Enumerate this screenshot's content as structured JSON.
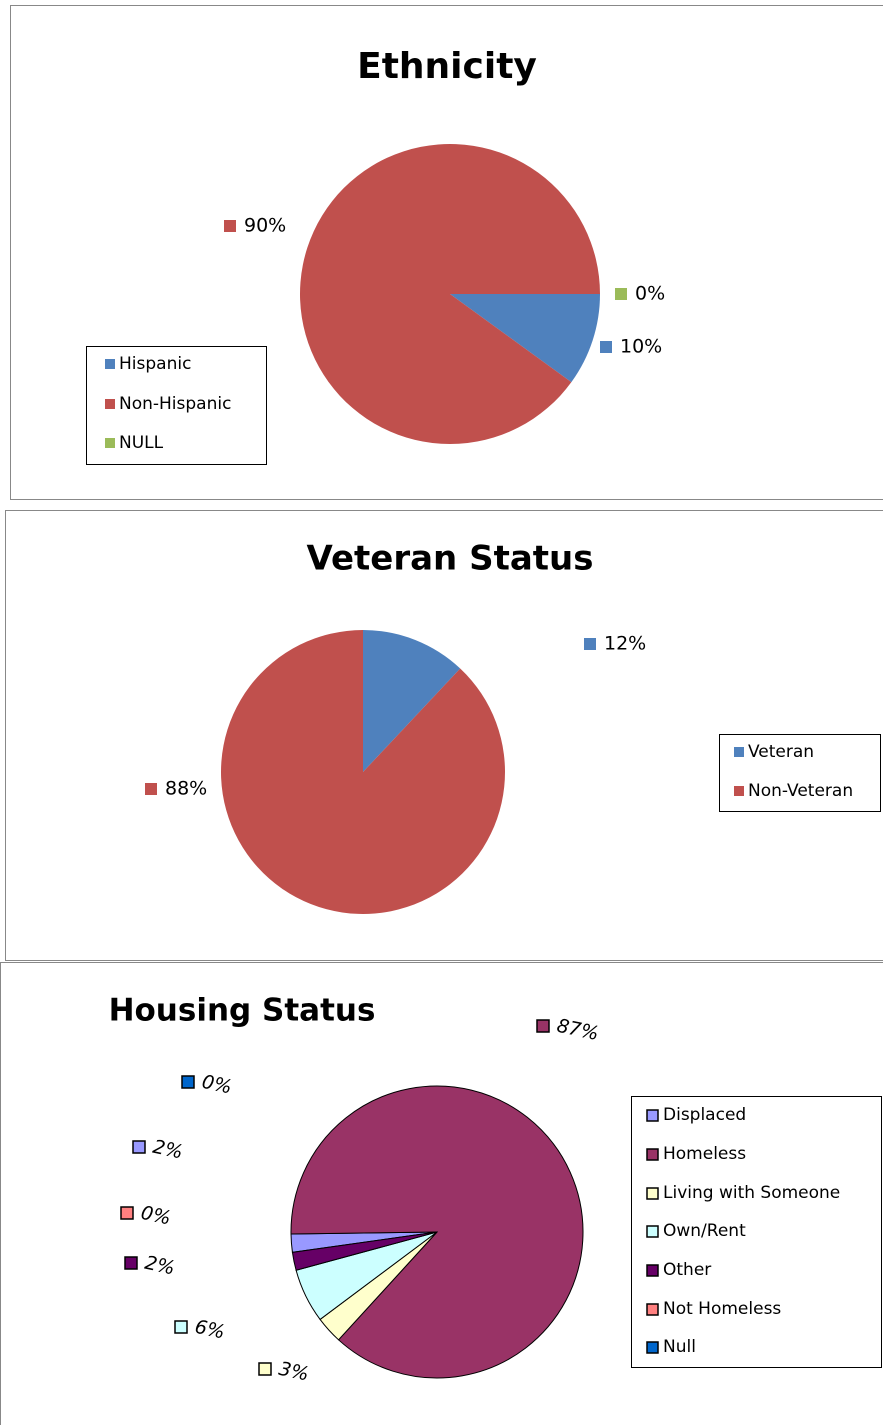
{
  "chart_data": [
    {
      "type": "pie",
      "title": "Ethnicity",
      "categories": [
        "Hispanic",
        "Non-Hispanic",
        "NULL"
      ],
      "values": [
        10,
        90,
        0
      ],
      "value_labels": [
        "10%",
        "90%",
        "0%"
      ],
      "colors": [
        "#4f81bd",
        "#c0504d",
        "#9bbb59"
      ]
    },
    {
      "type": "pie",
      "title": "Veteran Status",
      "categories": [
        "Veteran",
        "Non-Veteran"
      ],
      "values": [
        12,
        88
      ],
      "value_labels": [
        "12%",
        "88%"
      ],
      "colors": [
        "#4f81bd",
        "#c0504d"
      ]
    },
    {
      "type": "pie",
      "title": "Housing Status",
      "categories": [
        "Displaced",
        "Homeless",
        "Living with Someone",
        "Own/Rent",
        "Other",
        "Not Homeless",
        "Null"
      ],
      "values": [
        2,
        87,
        3,
        6,
        2,
        0,
        0
      ],
      "value_labels": [
        "2%",
        "87%",
        "3%",
        "6%",
        "2%",
        "0%",
        "0%"
      ],
      "colors": [
        "#9999ff",
        "#993366",
        "#ffffcc",
        "#ccffff",
        "#660066",
        "#ff8080",
        "#0066cc"
      ]
    }
  ]
}
